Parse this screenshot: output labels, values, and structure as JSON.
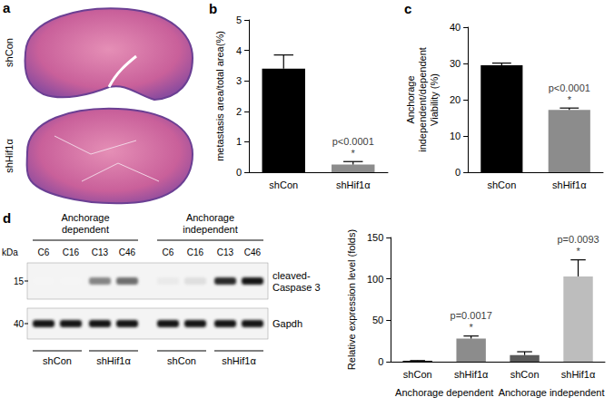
{
  "panel_labels": [
    "a",
    "b",
    "c",
    "d"
  ],
  "histology": {
    "labels": [
      "shCon",
      "shHif1α"
    ]
  },
  "blot": {
    "kda_label": "kDa",
    "groups": [
      "Anchorage\ndependent",
      "Anchorage\nindependent"
    ],
    "lanes": [
      "C6",
      "C16",
      "C13",
      "C46",
      "C6",
      "C16",
      "C13",
      "C46"
    ],
    "rows": [
      {
        "label": "cleaved-\nCaspase 3",
        "kda": 15,
        "intensity": [
          0,
          0,
          0.5,
          0.6,
          0.05,
          0.1,
          0.9,
          1
        ]
      },
      {
        "label": "Gapdh",
        "kda": 40,
        "intensity": [
          1,
          1,
          1,
          1,
          1,
          1,
          1,
          1
        ]
      }
    ],
    "conditions": [
      "shCon",
      "shHif1α",
      "shCon",
      "shHif1α"
    ]
  },
  "chart_data": [
    {
      "type": "bar",
      "ylabel": "metastasis area/total area(%)",
      "categories": [
        "shCon",
        "shHif1α"
      ],
      "values": [
        3.4,
        0.25
      ],
      "errors": [
        0.45,
        0.1
      ],
      "colors": [
        "#000000",
        "#8c8c8c"
      ],
      "ylim": [
        0,
        5
      ],
      "yticks": [
        0,
        1,
        2,
        3,
        4,
        5
      ],
      "grid": false,
      "annotations": [
        {
          "bar": 1,
          "text": [
            "p<0.0001",
            "*"
          ]
        }
      ]
    },
    {
      "type": "bar",
      "ylabel": "Anchorage\nindependent/dependent\nViability (%)",
      "categories": [
        "shCon",
        "shHif1α"
      ],
      "values": [
        29.5,
        17.2
      ],
      "errors": [
        0.6,
        0.5
      ],
      "colors": [
        "#000000",
        "#8c8c8c"
      ],
      "ylim": [
        0,
        40
      ],
      "yticks": [
        0,
        10,
        20,
        30,
        40
      ],
      "grid": false,
      "annotations": [
        {
          "bar": 1,
          "text": [
            "p<0.0001",
            "*"
          ]
        }
      ]
    },
    {
      "type": "bar",
      "ylabel": "Relative expression level (folds)",
      "categories": [
        "shCon",
        "shHif1α",
        "shCon",
        "shHif1α"
      ],
      "groups": [
        "Anchorage dependent",
        "Anchorage independent"
      ],
      "values": [
        1,
        28,
        8,
        103
      ],
      "errors": [
        0.3,
        3,
        4,
        20
      ],
      "colors": [
        "#000000",
        "#8c8c8c",
        "#5a5a5a",
        "#bdbdbd"
      ],
      "ylim": [
        0,
        150
      ],
      "yticks": [
        0,
        50,
        100,
        150
      ],
      "grid": false,
      "annotations": [
        {
          "bar": 1,
          "text": [
            "p=0.0017",
            "*"
          ]
        },
        {
          "bar": 3,
          "text": [
            "p=0.0093",
            "*"
          ]
        }
      ]
    }
  ]
}
